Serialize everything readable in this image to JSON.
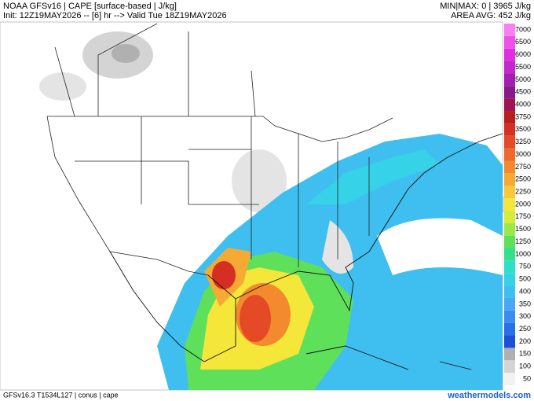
{
  "header": {
    "title": "NOAA GFSv16 | CAPE [surface-based | J/kg]",
    "init": "Init: 12Z19MAY2026 -- [6] hr --> Valid Tue 18Z19MAY2026",
    "minmax": "MIN|MAX:  0 | 3965 J/kg",
    "area_avg": "AREA AVG: 452 J/kg"
  },
  "colorbar": {
    "levels": [
      50,
      100,
      150,
      200,
      250,
      300,
      350,
      400,
      500,
      750,
      1000,
      1250,
      1500,
      1750,
      2000,
      2250,
      2500,
      2750,
      3000,
      3250,
      3500,
      3750,
      4000,
      4500,
      5000,
      5500,
      6000,
      6500,
      7000
    ],
    "colors": [
      "#f2f2f2",
      "#d4d4d4",
      "#b0b0b0",
      "#1f4fd6",
      "#2a6ee8",
      "#3b8cf0",
      "#4aa8f5",
      "#3fbfef",
      "#36d2e8",
      "#2fe0c8",
      "#35e08c",
      "#5fe05a",
      "#9be84a",
      "#d6ec3c",
      "#f5e63a",
      "#f7c837",
      "#f6a933",
      "#f38a2e",
      "#ee6a2a",
      "#e44a26",
      "#d42f22",
      "#b81e1e",
      "#9e1450",
      "#8a1a8a",
      "#a01fb0",
      "#c426d0",
      "#e02ee0",
      "#f050e8",
      "#f880f0"
    ]
  },
  "footer": {
    "model": "GFSv16.3 T1534L127 | conus | cape",
    "site": "weathermodels.com"
  }
}
